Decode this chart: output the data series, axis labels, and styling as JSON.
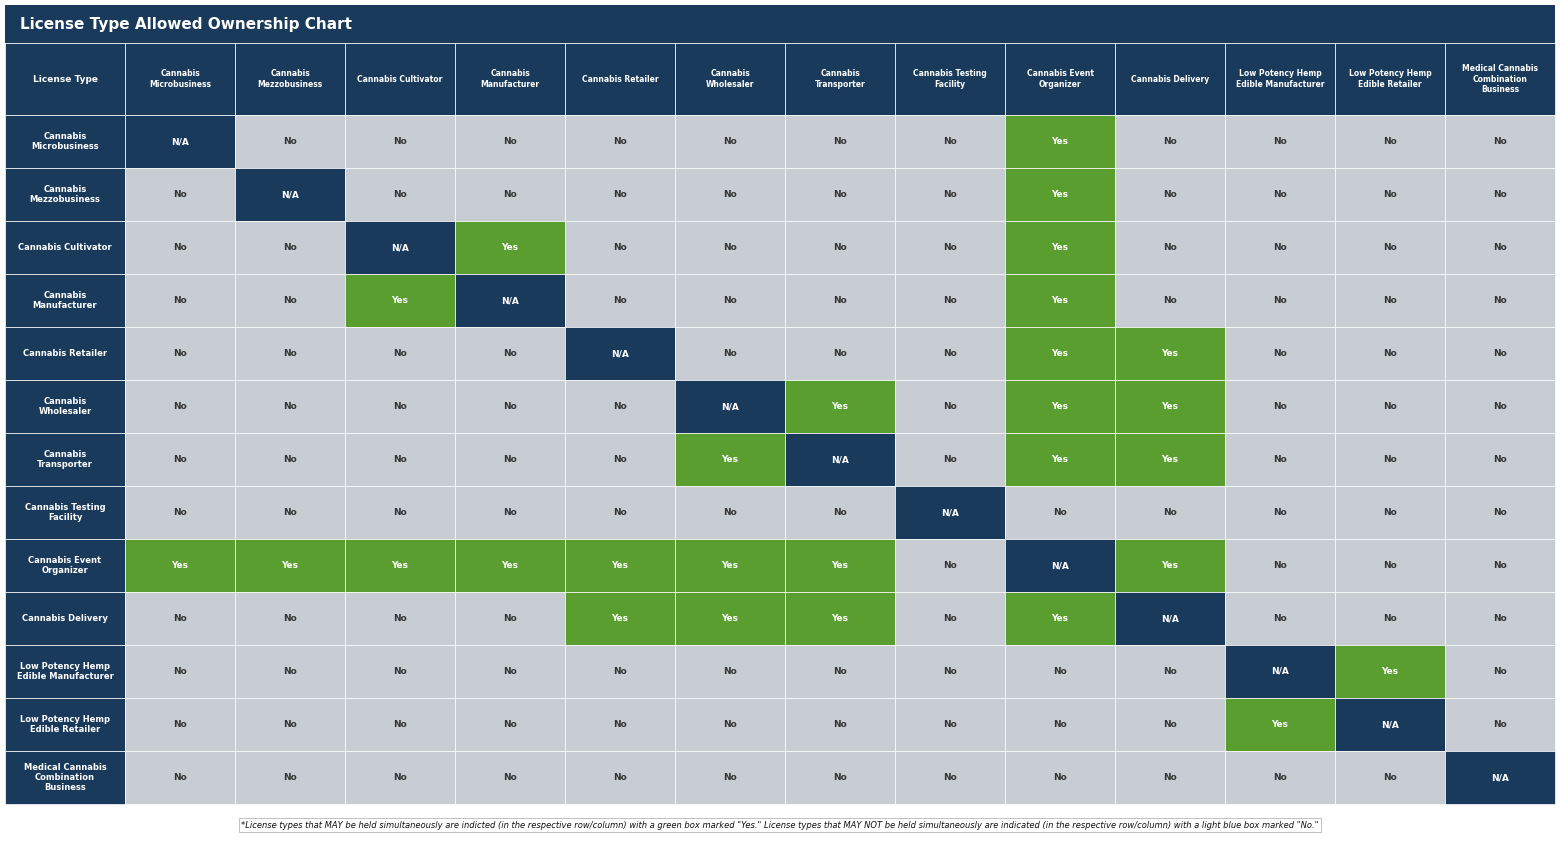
{
  "title": "License Type Allowed Ownership Chart",
  "title_bg": "#1a3a5c",
  "title_color": "#ffffff",
  "header_bg": "#1a3a5c",
  "header_color": "#ffffff",
  "row_label_bg": "#1a3a5c",
  "row_label_color": "#ffffff",
  "na_bg": "#1a3a5c",
  "na_color": "#ffffff",
  "yes_bg": "#5a9e2f",
  "yes_color": "#ffffff",
  "no_bg": "#c8cdd4",
  "no_color": "#333333",
  "footer_text": "*License types that MAY be held simultaneously are indicted (in the respective row/column) with a green box marked \"Yes.\" License types that MAY NOT be held simultaneously are indicated (in the respective row/column) with a light blue box marked \"No.\"",
  "col_headers": [
    "Cannabis\nMicrobusiness",
    "Cannabis\nMezzobusiness",
    "Cannabis Cultivator",
    "Cannabis\nManufacturer",
    "Cannabis Retailer",
    "Cannabis\nWholesaler",
    "Cannabis\nTransporter",
    "Cannabis Testing\nFacility",
    "Cannabis Event\nOrganizer",
    "Cannabis Delivery",
    "Low Potency Hemp\nEdible Manufacturer",
    "Low Potency Hemp\nEdible Retailer",
    "Medical Cannabis\nCombination\nBusiness"
  ],
  "row_headers": [
    "Cannabis\nMicrobusiness",
    "Cannabis\nMezzobusiness",
    "Cannabis Cultivator",
    "Cannabis\nManufacturer",
    "Cannabis Retailer",
    "Cannabis\nWholesaler",
    "Cannabis\nTransporter",
    "Cannabis Testing\nFacility",
    "Cannabis Event\nOrganizer",
    "Cannabis Delivery",
    "Low Potency Hemp\nEdible Manufacturer",
    "Low Potency Hemp\nEdible Retailer",
    "Medical Cannabis\nCombination\nBusiness"
  ],
  "matrix": [
    [
      "N/A",
      "No",
      "No",
      "No",
      "No",
      "No",
      "No",
      "No",
      "Yes",
      "No",
      "No",
      "No",
      "No"
    ],
    [
      "No",
      "N/A",
      "No",
      "No",
      "No",
      "No",
      "No",
      "No",
      "Yes",
      "No",
      "No",
      "No",
      "No"
    ],
    [
      "No",
      "No",
      "N/A",
      "Yes",
      "No",
      "No",
      "No",
      "No",
      "Yes",
      "No",
      "No",
      "No",
      "No"
    ],
    [
      "No",
      "No",
      "Yes",
      "N/A",
      "No",
      "No",
      "No",
      "No",
      "Yes",
      "No",
      "No",
      "No",
      "No"
    ],
    [
      "No",
      "No",
      "No",
      "No",
      "N/A",
      "No",
      "No",
      "No",
      "Yes",
      "Yes",
      "No",
      "No",
      "No"
    ],
    [
      "No",
      "No",
      "No",
      "No",
      "No",
      "N/A",
      "Yes",
      "No",
      "Yes",
      "Yes",
      "No",
      "No",
      "No"
    ],
    [
      "No",
      "No",
      "No",
      "No",
      "No",
      "Yes",
      "N/A",
      "No",
      "Yes",
      "Yes",
      "No",
      "No",
      "No"
    ],
    [
      "No",
      "No",
      "No",
      "No",
      "No",
      "No",
      "No",
      "N/A",
      "No",
      "No",
      "No",
      "No",
      "No"
    ],
    [
      "Yes",
      "Yes",
      "Yes",
      "Yes",
      "Yes",
      "Yes",
      "Yes",
      "No",
      "N/A",
      "Yes",
      "No",
      "No",
      "No"
    ],
    [
      "No",
      "No",
      "No",
      "No",
      "Yes",
      "Yes",
      "Yes",
      "No",
      "Yes",
      "N/A",
      "No",
      "No",
      "No"
    ],
    [
      "No",
      "No",
      "No",
      "No",
      "No",
      "No",
      "No",
      "No",
      "No",
      "No",
      "N/A",
      "Yes",
      "No"
    ],
    [
      "No",
      "No",
      "No",
      "No",
      "No",
      "No",
      "No",
      "No",
      "No",
      "No",
      "Yes",
      "N/A",
      "No"
    ],
    [
      "No",
      "No",
      "No",
      "No",
      "No",
      "No",
      "No",
      "No",
      "No",
      "No",
      "No",
      "No",
      "N/A"
    ]
  ]
}
